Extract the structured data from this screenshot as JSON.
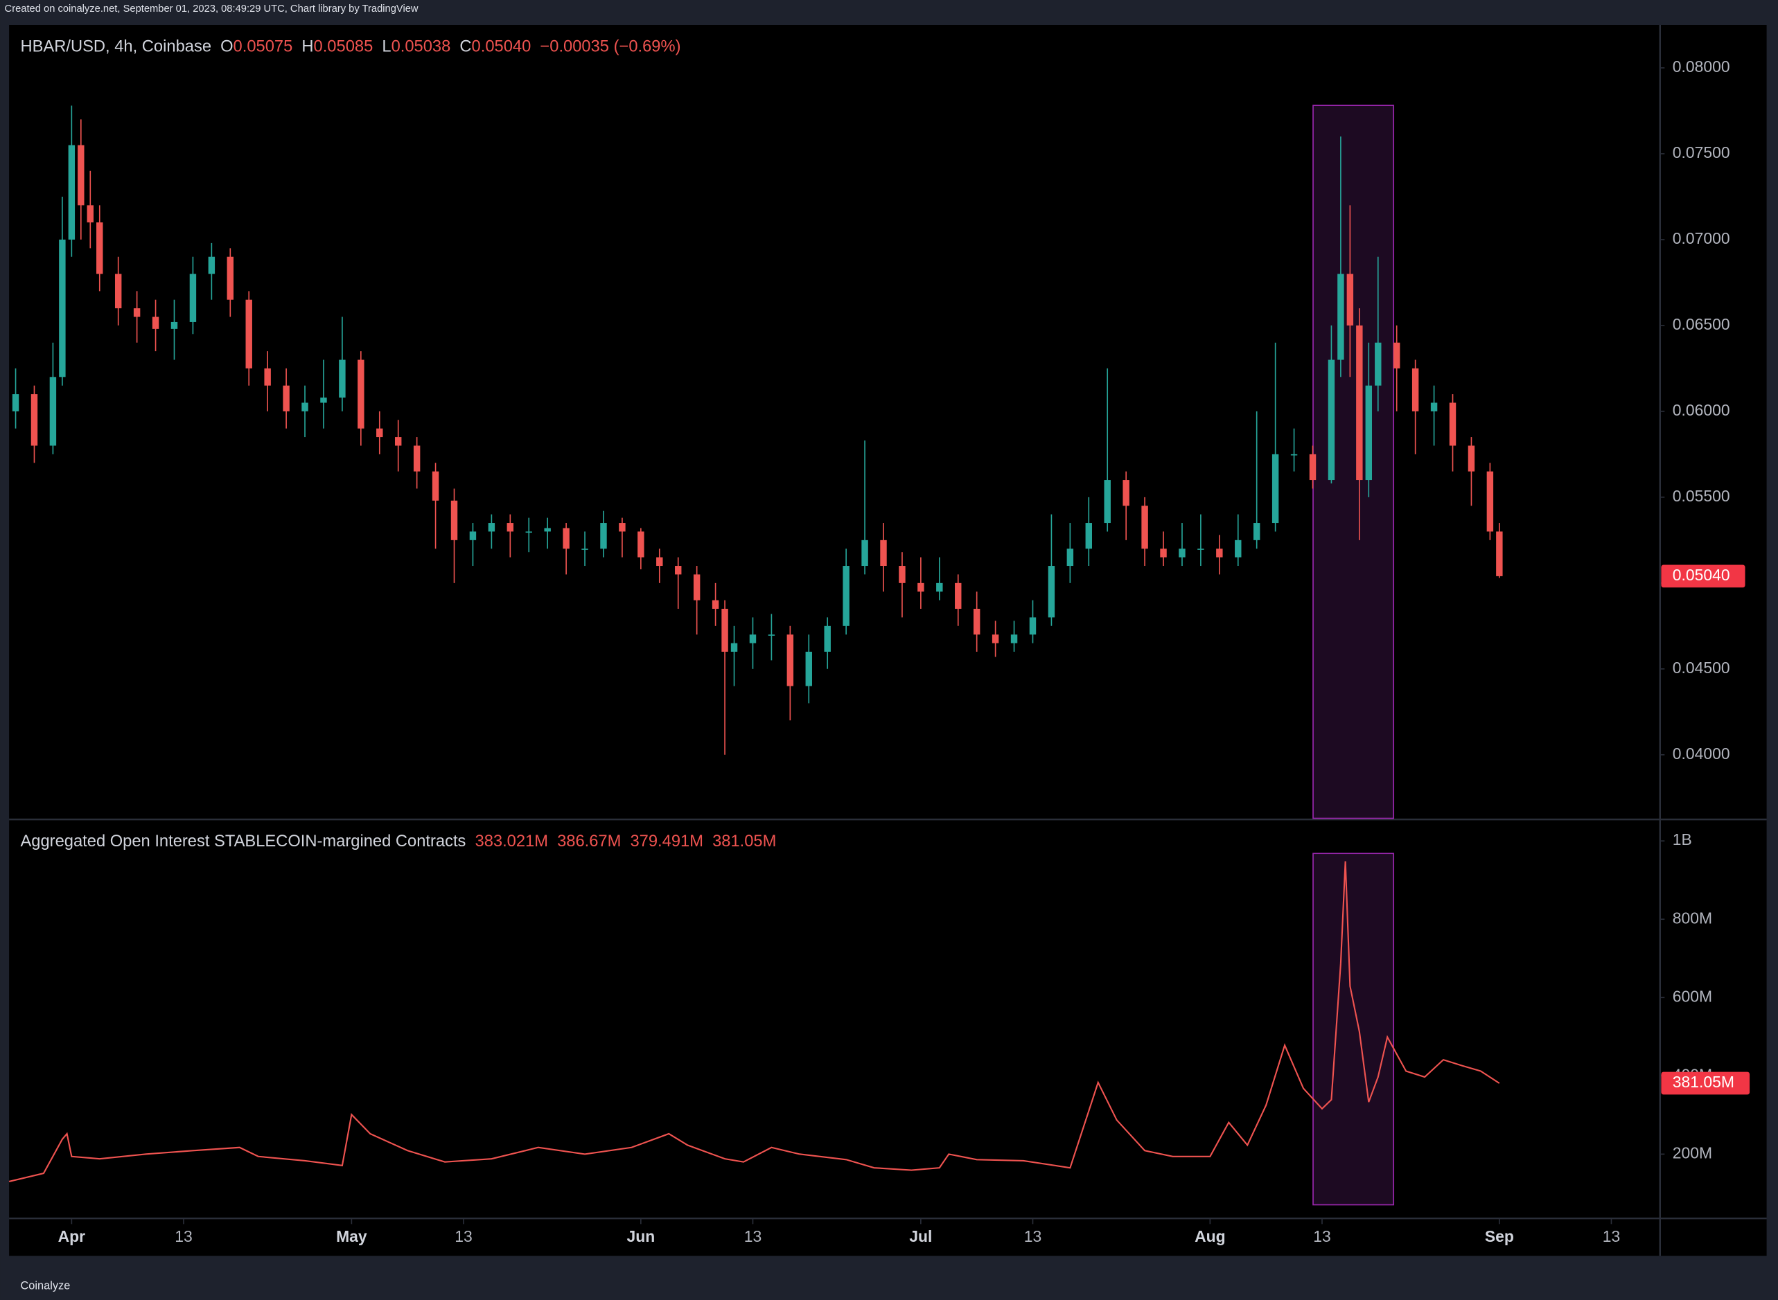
{
  "created_note": "Created on coinalyze.net, September 01, 2023, 08:49:29 UTC, Chart library by TradingView",
  "footer_brand": "Coinalyze",
  "chart_data": [
    {
      "type": "candlestick",
      "title": "HBAR/USD, 4h, Coinbase",
      "ohlc_labels": [
        "O",
        "H",
        "L",
        "C"
      ],
      "ohlc_values": [
        "0.05075",
        "0.05085",
        "0.05038",
        "0.05040"
      ],
      "change": "−0.00035 (−0.69%)",
      "x": [
        -6,
        -4,
        -2,
        -1,
        0,
        1,
        2,
        3,
        5,
        7,
        9,
        11,
        13,
        15,
        17,
        19,
        21,
        23,
        25,
        27,
        29,
        31,
        33,
        35,
        37,
        39,
        41,
        43,
        45,
        47,
        49,
        51,
        53,
        55,
        57,
        59,
        61,
        63,
        65,
        67,
        69,
        70,
        71,
        73,
        75,
        77,
        79,
        81,
        83,
        85,
        87,
        89,
        91,
        93,
        95,
        97,
        99,
        101,
        103,
        105,
        107,
        109,
        111,
        113,
        115,
        117,
        119,
        121,
        123,
        125,
        127,
        129,
        131,
        133,
        135,
        136,
        137,
        138,
        139,
        140,
        142,
        144,
        146,
        148,
        150,
        152,
        153
      ],
      "open": [
        0.06,
        0.061,
        0.058,
        0.062,
        0.07,
        0.0755,
        0.072,
        0.071,
        0.068,
        0.066,
        0.0655,
        0.0648,
        0.0652,
        0.068,
        0.069,
        0.0665,
        0.0625,
        0.0615,
        0.06,
        0.0605,
        0.0608,
        0.063,
        0.059,
        0.0585,
        0.058,
        0.0565,
        0.0548,
        0.0525,
        0.053,
        0.0535,
        0.053,
        0.053,
        0.0532,
        0.052,
        0.052,
        0.0535,
        0.053,
        0.0515,
        0.051,
        0.0505,
        0.049,
        0.0485,
        0.046,
        0.0465,
        0.047,
        0.047,
        0.044,
        0.046,
        0.0475,
        0.051,
        0.0525,
        0.051,
        0.05,
        0.0495,
        0.05,
        0.0485,
        0.047,
        0.0465,
        0.047,
        0.048,
        0.051,
        0.052,
        0.0535,
        0.056,
        0.0545,
        0.052,
        0.0515,
        0.052,
        0.052,
        0.0515,
        0.0525,
        0.0535,
        0.0575,
        0.0575,
        0.056,
        0.063,
        0.068,
        0.065,
        0.056,
        0.0615,
        0.064,
        0.0625,
        0.06,
        0.0605,
        0.058,
        0.0565,
        0.053
      ],
      "high": [
        0.0625,
        0.0615,
        0.064,
        0.0725,
        0.0778,
        0.077,
        0.074,
        0.072,
        0.069,
        0.067,
        0.0665,
        0.0665,
        0.069,
        0.0698,
        0.0695,
        0.067,
        0.0635,
        0.0625,
        0.0615,
        0.063,
        0.0655,
        0.0635,
        0.06,
        0.0595,
        0.0585,
        0.057,
        0.0555,
        0.0535,
        0.054,
        0.054,
        0.0538,
        0.0538,
        0.0535,
        0.053,
        0.0542,
        0.0538,
        0.0532,
        0.052,
        0.0515,
        0.051,
        0.05,
        0.049,
        0.0475,
        0.048,
        0.0482,
        0.0475,
        0.047,
        0.048,
        0.052,
        0.0583,
        0.0535,
        0.0518,
        0.0515,
        0.0515,
        0.0505,
        0.0495,
        0.0478,
        0.0478,
        0.049,
        0.054,
        0.0535,
        0.055,
        0.0625,
        0.0565,
        0.055,
        0.053,
        0.0535,
        0.054,
        0.0528,
        0.054,
        0.06,
        0.064,
        0.059,
        0.058,
        0.065,
        0.076,
        0.072,
        0.066,
        0.064,
        0.069,
        0.065,
        0.063,
        0.0615,
        0.061,
        0.0585,
        0.057,
        0.0535
      ],
      "low": [
        0.059,
        0.057,
        0.0575,
        0.0615,
        0.069,
        0.07,
        0.0695,
        0.067,
        0.065,
        0.064,
        0.0635,
        0.063,
        0.0645,
        0.0665,
        0.0655,
        0.0615,
        0.06,
        0.059,
        0.0585,
        0.059,
        0.06,
        0.058,
        0.0575,
        0.0565,
        0.0555,
        0.052,
        0.05,
        0.051,
        0.052,
        0.0515,
        0.0518,
        0.052,
        0.0505,
        0.051,
        0.0515,
        0.0515,
        0.0508,
        0.05,
        0.0485,
        0.047,
        0.0475,
        0.04,
        0.044,
        0.045,
        0.0455,
        0.042,
        0.043,
        0.045,
        0.047,
        0.0505,
        0.0495,
        0.048,
        0.0485,
        0.049,
        0.0475,
        0.046,
        0.0457,
        0.046,
        0.0465,
        0.0475,
        0.05,
        0.051,
        0.053,
        0.0525,
        0.051,
        0.051,
        0.051,
        0.051,
        0.0505,
        0.051,
        0.052,
        0.053,
        0.0565,
        0.0555,
        0.0558,
        0.062,
        0.062,
        0.0525,
        0.055,
        0.06,
        0.06,
        0.0575,
        0.058,
        0.0565,
        0.0545,
        0.0525,
        0.0503
      ],
      "close": [
        0.061,
        0.058,
        0.062,
        0.07,
        0.0755,
        0.072,
        0.071,
        0.068,
        0.066,
        0.0655,
        0.0648,
        0.0652,
        0.068,
        0.069,
        0.0665,
        0.0625,
        0.0615,
        0.06,
        0.0605,
        0.0608,
        0.063,
        0.059,
        0.0585,
        0.058,
        0.0565,
        0.0548,
        0.0525,
        0.053,
        0.0535,
        0.053,
        0.053,
        0.0532,
        0.052,
        0.052,
        0.0535,
        0.053,
        0.0515,
        0.051,
        0.0505,
        0.049,
        0.0485,
        0.046,
        0.0465,
        0.047,
        0.047,
        0.044,
        0.046,
        0.0475,
        0.051,
        0.0525,
        0.051,
        0.05,
        0.0495,
        0.05,
        0.0485,
        0.047,
        0.0465,
        0.047,
        0.048,
        0.051,
        0.052,
        0.0535,
        0.056,
        0.0545,
        0.052,
        0.0515,
        0.052,
        0.052,
        0.0515,
        0.0525,
        0.0535,
        0.0575,
        0.0575,
        0.056,
        0.063,
        0.068,
        0.065,
        0.056,
        0.0615,
        0.064,
        0.0625,
        0.06,
        0.0605,
        0.058,
        0.0565,
        0.053,
        0.0504
      ],
      "up_color": "#26a69a",
      "down_color": "#ef5350",
      "last_value": {
        "value": 0.0504,
        "label": "0.05040"
      },
      "xlim": [
        -6.7,
        170.1
      ],
      "ylim": [
        0.0363,
        0.0825
      ],
      "yticks": [
        {
          "value": 0.04,
          "label": "0.04000"
        },
        {
          "value": 0.045,
          "label": "0.04500"
        },
        {
          "value": 0.05,
          "label": "0.05000"
        },
        {
          "value": 0.055,
          "label": "0.05500"
        },
        {
          "value": 0.06,
          "label": "0.06000"
        },
        {
          "value": 0.065,
          "label": "0.06500"
        },
        {
          "value": 0.07,
          "label": "0.07000"
        },
        {
          "value": 0.075,
          "label": "0.07500"
        },
        {
          "value": 0.08,
          "label": "0.08000"
        }
      ]
    },
    {
      "type": "line",
      "title": "Aggregated Open Interest STABLECOIN-margined Contracts",
      "ohlc_values": [
        "383.021M",
        "386.67M",
        "379.491M",
        "381.05M"
      ],
      "x": [
        -6.7,
        -3,
        -1,
        -0.5,
        0,
        3,
        8,
        13,
        18,
        20,
        25,
        28,
        29,
        30,
        32,
        36,
        40,
        45,
        50,
        55,
        60,
        64,
        66,
        70,
        72,
        75,
        78,
        83,
        86,
        90,
        93,
        94,
        97,
        102,
        107,
        109,
        110,
        112,
        115,
        118,
        122,
        124,
        126,
        128,
        130,
        132,
        134,
        135,
        136,
        136.5,
        137,
        138,
        139,
        140,
        141,
        143,
        145,
        147,
        149,
        151,
        153
      ],
      "series": [
        {
          "name": "Open Interest",
          "color": "#ef5350",
          "values": [
            130000000,
            151000000,
            238000000,
            252000000,
            194000000,
            188000000,
            200000000,
            209000000,
            217000000,
            194000000,
            183000000,
            174000000,
            171000000,
            301000000,
            252000000,
            209000000,
            180000000,
            188000000,
            217000000,
            200000000,
            217000000,
            252000000,
            223000000,
            188000000,
            180000000,
            217000000,
            200000000,
            186000000,
            165000000,
            159000000,
            165000000,
            200000000,
            186000000,
            183000000,
            165000000,
            310000000,
            383000000,
            287000000,
            209000000,
            194000000,
            194000000,
            281000000,
            223000000,
            325000000,
            478000000,
            368000000,
            316000000,
            339000000,
            687000000,
            948000000,
            629000000,
            513000000,
            333000000,
            397000000,
            499000000,
            412000000,
            397000000,
            441000000,
            426000000,
            412000000,
            381050000
          ]
        }
      ],
      "last_value": {
        "value": 381050000,
        "label": "381.05M"
      },
      "xlim": [
        -6.7,
        170.1
      ],
      "ylim": [
        38700000,
        1052000000
      ],
      "yticks": [
        {
          "value": 200000000,
          "label": "200M"
        },
        {
          "value": 400000000,
          "label": "400M"
        },
        {
          "value": 600000000,
          "label": "600M"
        },
        {
          "value": 800000000,
          "label": "800M"
        },
        {
          "value": 1000000000,
          "label": "1B"
        }
      ],
      "xticks": [
        {
          "value": 0,
          "label": "Apr"
        },
        {
          "value": 12,
          "label": "13"
        },
        {
          "value": 30,
          "label": "May"
        },
        {
          "value": 42,
          "label": "13"
        },
        {
          "value": 61,
          "label": "Jun"
        },
        {
          "value": 73,
          "label": "13"
        },
        {
          "value": 91,
          "label": "Jul"
        },
        {
          "value": 103,
          "label": "13"
        },
        {
          "value": 122,
          "label": "Aug"
        },
        {
          "value": 134,
          "label": "13"
        },
        {
          "value": 153,
          "label": "Sep"
        },
        {
          "value": 165,
          "label": "13"
        }
      ]
    }
  ]
}
